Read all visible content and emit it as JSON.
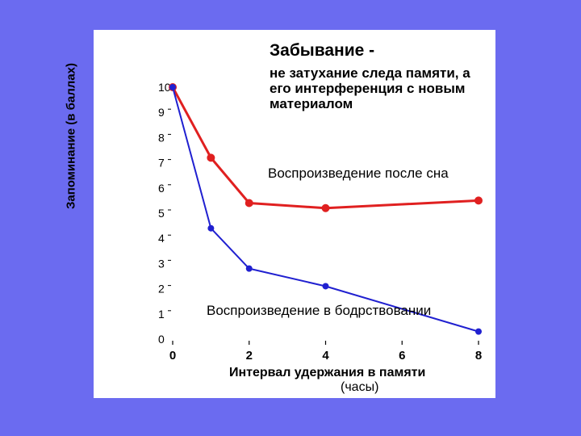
{
  "title": "Забывание -",
  "subtitle": "не затухание следа памяти, а его интерференция с новым материалом",
  "chart_data": {
    "type": "line",
    "ylabel": "Запоминание (в баллах)",
    "xlabel": "Интервал удержания в памяти",
    "xlabel_unit": "(часы)",
    "x_ticks": [
      "0",
      "2",
      "4",
      "6",
      "8"
    ],
    "y_ticks": [
      "0",
      "1",
      "2",
      "3",
      "4",
      "5",
      "6",
      "7",
      "8",
      "9",
      "10"
    ],
    "xlim": [
      0,
      8
    ],
    "ylim": [
      0,
      10
    ],
    "series": [
      {
        "name": "Воспроизведение после сна",
        "color": "#e02020",
        "x": [
          0,
          1,
          2,
          4,
          8
        ],
        "y": [
          10,
          7.2,
          5.4,
          5.2,
          5.5
        ]
      },
      {
        "name": "Воспроизведение в бодрствовании",
        "color": "#2020d0",
        "x": [
          0,
          1,
          2,
          4,
          8
        ],
        "y": [
          10,
          4.4,
          2.8,
          2.1,
          0.3
        ]
      }
    ]
  }
}
